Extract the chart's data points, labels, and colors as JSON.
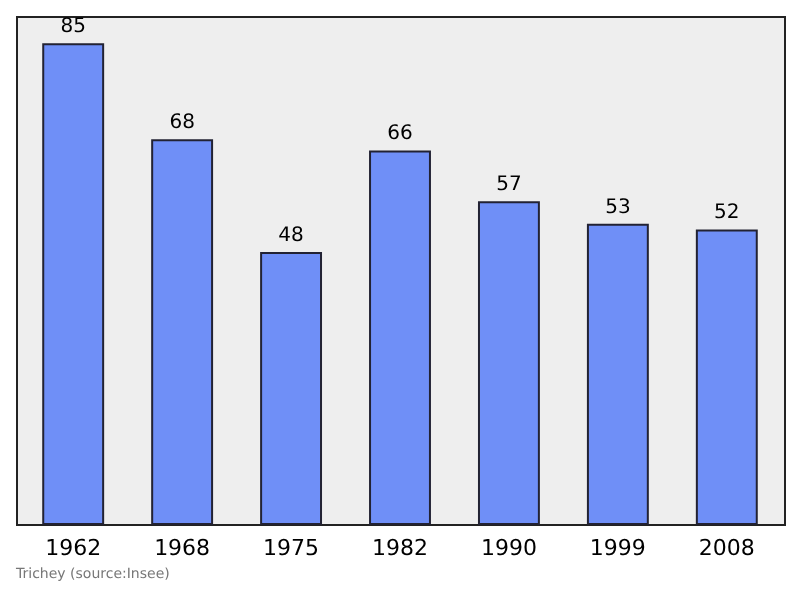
{
  "chart_data": {
    "type": "bar",
    "categories": [
      "1962",
      "1968",
      "1975",
      "1982",
      "1990",
      "1999",
      "2008"
    ],
    "values": [
      85,
      68,
      48,
      66,
      57,
      53,
      52
    ],
    "color": "#6f8ff7",
    "data_labels": true,
    "grid": false,
    "annotations": [
      "Trichey    (source:Insee)"
    ]
  }
}
